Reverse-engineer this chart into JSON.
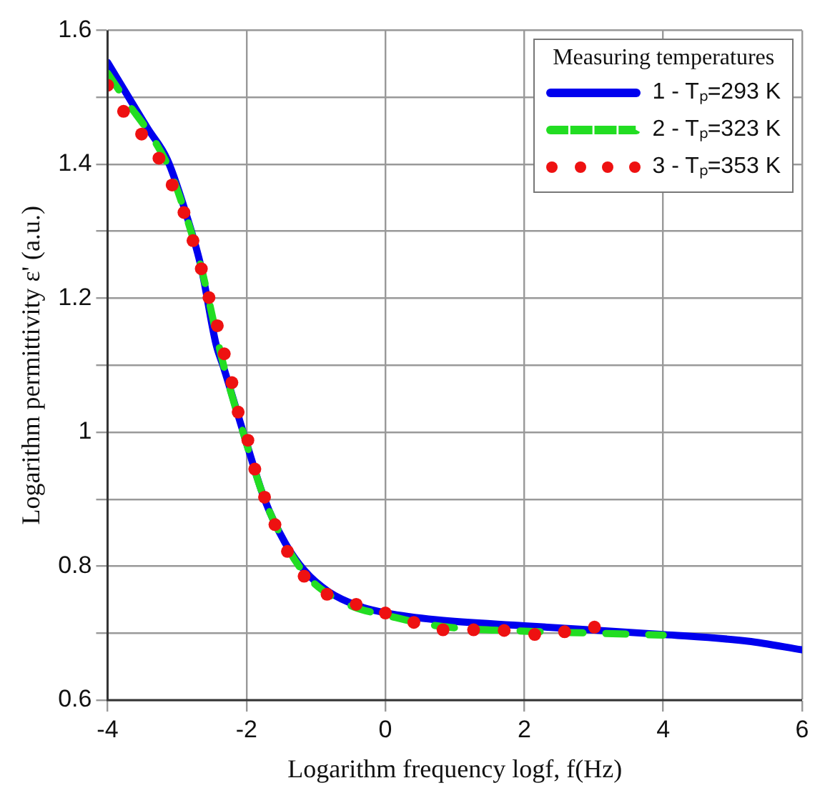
{
  "chart_data": {
    "type": "line",
    "xlabel": "Logarithm frequency logf, f(Hz)",
    "ylabel": "Logarithm permittivity ε' (a.u.)",
    "legend_title": "Measuring temperatures",
    "legend": "top right",
    "grid": true,
    "xlim": [
      -4,
      6
    ],
    "xticks": [
      -4,
      -2,
      0,
      2,
      4,
      6
    ],
    "ylim": [
      0.6,
      1.6
    ],
    "yticks": [
      0.6,
      {
        "value": 0.7,
        "label": null
      },
      0.8,
      {
        "value": 0.9,
        "label": null
      },
      1,
      {
        "value": 1.1,
        "label": null
      },
      1.2,
      {
        "value": 1.3,
        "label": null
      },
      1.4,
      {
        "value": 1.5,
        "label": null
      },
      1.6
    ],
    "series": [
      {
        "name": "1 - Tₚ=293 K",
        "color": "#0000ee",
        "line_style": "solid",
        "marker": "none",
        "x": [
          -4,
          -3.42,
          -3.14,
          -2.86,
          -2.65,
          -2.44,
          -2.33,
          -2.02,
          -1.74,
          -1.45,
          -1.17,
          -0.82,
          -0.4,
          0.02,
          0.73,
          2,
          4,
          5.22,
          6
        ],
        "values": [
          1.552,
          1.453,
          1.407,
          1.323,
          1.245,
          1.132,
          1.097,
          0.991,
          0.9,
          0.836,
          0.794,
          0.762,
          0.741,
          0.73,
          0.72,
          0.711,
          0.698,
          0.688,
          0.675
        ]
      },
      {
        "name": "2 - Tₚ=323 K",
        "color": "#22dd22",
        "line_style": "dashed",
        "marker": "none",
        "x": [
          -4,
          -3.7,
          -3.42,
          -3.14,
          -2.86,
          -2.65,
          -2.33,
          -2.02,
          -1.74,
          -1.45,
          -1.17,
          -0.82,
          -0.4,
          0,
          0.5,
          1,
          2,
          3,
          4
        ],
        "values": [
          1.536,
          1.49,
          1.45,
          1.4,
          1.32,
          1.245,
          1.1,
          0.99,
          0.9,
          0.835,
          0.79,
          0.758,
          0.737,
          0.727,
          0.715,
          0.708,
          0.703,
          0.7,
          0.697
        ]
      },
      {
        "name": "3 - Tₚ=353 K",
        "type": "scatter",
        "color": "#ee1111",
        "marker": "circle",
        "x": [
          -4,
          -3.77,
          -3.51,
          -3.26,
          -3.07,
          -2.9,
          -2.77,
          -2.65,
          -2.54,
          -2.42,
          -2.32,
          -2.21,
          -2.12,
          -1.98,
          -1.88,
          -1.74,
          -1.59,
          -1.41,
          -1.17,
          -0.84,
          -0.42,
          0,
          0.41,
          0.83,
          1.27,
          1.71,
          2.15,
          2.58,
          3.01
        ],
        "values": [
          1.518,
          1.479,
          1.445,
          1.409,
          1.369,
          1.328,
          1.286,
          1.244,
          1.201,
          1.159,
          1.117,
          1.074,
          1.03,
          0.988,
          0.945,
          0.903,
          0.862,
          0.822,
          0.785,
          0.758,
          0.743,
          0.73,
          0.716,
          0.705,
          0.705,
          0.704,
          0.698,
          0.702,
          0.709
        ]
      }
    ]
  }
}
